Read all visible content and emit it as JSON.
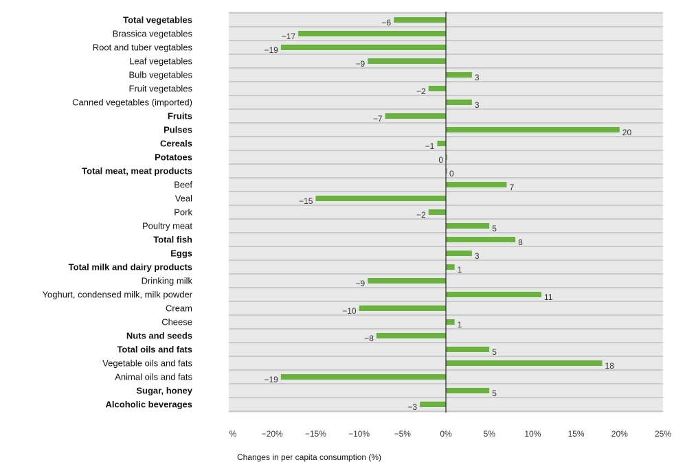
{
  "chart_data": {
    "type": "bar",
    "orientation": "horizontal",
    "title": "",
    "xlabel": "Changes in per capita consumption (%)",
    "ylabel": "",
    "xlim": [
      -25,
      25
    ],
    "xticks": [
      -25,
      -20,
      -15,
      -10,
      -5,
      0,
      5,
      10,
      15,
      20,
      25
    ],
    "xtick_labels": [
      "%",
      "−20%",
      "−15%",
      "−10%",
      "−5%",
      "0%",
      "5%",
      "10%",
      "15%",
      "20%",
      "25%"
    ],
    "grid": true,
    "legend": "none",
    "colors": {
      "bar": "#6ab23e",
      "plot_bg": "#e8e8e8",
      "grid": "#ababab",
      "zero_line": "#222222"
    },
    "categories": [
      {
        "label": "Total vegetables",
        "value": -6,
        "value_label": "−6",
        "bold": true
      },
      {
        "label": "Brassica vegetables",
        "value": -17,
        "value_label": "−17",
        "bold": false
      },
      {
        "label": "Root and tuber vegtables",
        "value": -19,
        "value_label": "−19",
        "bold": false
      },
      {
        "label": "Leaf vegetables",
        "value": -9,
        "value_label": "−9",
        "bold": false
      },
      {
        "label": "Bulb vegetables",
        "value": 3,
        "value_label": "3",
        "bold": false
      },
      {
        "label": "Fruit vegetables",
        "value": -2,
        "value_label": "−2",
        "bold": false
      },
      {
        "label": "Canned vegetables (imported)",
        "value": 3,
        "value_label": "3",
        "bold": false
      },
      {
        "label": "Fruits",
        "value": -7,
        "value_label": "−7",
        "bold": true
      },
      {
        "label": "Pulses",
        "value": 20,
        "value_label": "20",
        "bold": true
      },
      {
        "label": "Cereals",
        "value": -1,
        "value_label": "−1",
        "bold": true
      },
      {
        "label": "Potatoes",
        "value": 0,
        "value_label": "0",
        "bold": true
      },
      {
        "label": "Total meat, meat products",
        "value": 0,
        "value_label": "0",
        "bold": true
      },
      {
        "label": "Beef",
        "value": 7,
        "value_label": "7",
        "bold": false
      },
      {
        "label": "Veal",
        "value": -15,
        "value_label": "−15",
        "bold": false
      },
      {
        "label": "Pork",
        "value": -2,
        "value_label": "−2",
        "bold": false
      },
      {
        "label": "Poultry meat",
        "value": 5,
        "value_label": "5",
        "bold": false
      },
      {
        "label": "Total fish",
        "value": 8,
        "value_label": "8",
        "bold": true
      },
      {
        "label": "Eggs",
        "value": 3,
        "value_label": "3",
        "bold": true
      },
      {
        "label": "Total milk and dairy products",
        "value": 1,
        "value_label": "1",
        "bold": true
      },
      {
        "label": "Drinking milk",
        "value": -9,
        "value_label": "−9",
        "bold": false
      },
      {
        "label": "Yoghurt, condensed milk, milk powder",
        "value": 11,
        "value_label": "11",
        "bold": false
      },
      {
        "label": "Cream",
        "value": -10,
        "value_label": "−10",
        "bold": false
      },
      {
        "label": "Cheese",
        "value": 1,
        "value_label": "1",
        "bold": false
      },
      {
        "label": "Nuts and seeds",
        "value": -8,
        "value_label": "−8",
        "bold": true
      },
      {
        "label": "Total oils and fats",
        "value": 5,
        "value_label": "5",
        "bold": true
      },
      {
        "label": "Vegetable oils and fats",
        "value": 18,
        "value_label": "18",
        "bold": false
      },
      {
        "label": "Animal oils and fats",
        "value": -19,
        "value_label": "−19",
        "bold": false
      },
      {
        "label": "Sugar, honey",
        "value": 5,
        "value_label": "5",
        "bold": true
      },
      {
        "label": "Alcoholic beverages",
        "value": -3,
        "value_label": "−3",
        "bold": true
      }
    ]
  }
}
